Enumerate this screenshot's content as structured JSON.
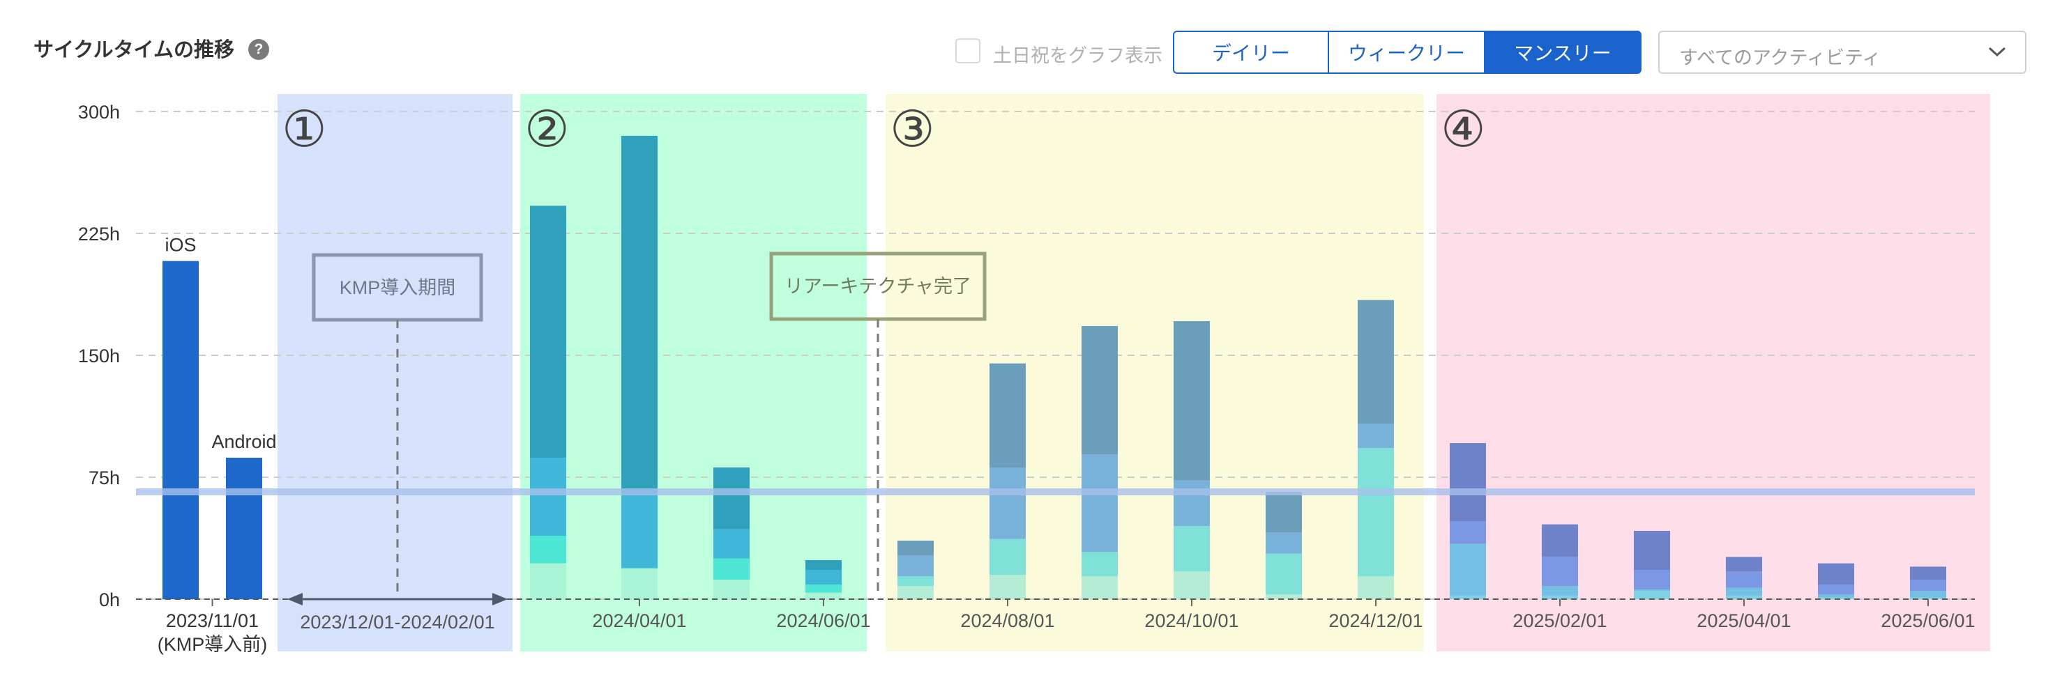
{
  "header": {
    "title": "サイクルタイムの推移",
    "help_icon": "question-circle-icon",
    "weekend_checkbox_label": "土日祝をグラフ表示",
    "weekend_checked": false,
    "period_tabs": [
      "デイリー",
      "ウィークリー",
      "マンスリー"
    ],
    "active_period": "マンスリー",
    "activity_select": "すべてのアクティビティ",
    "chevron_icon": "chevron-down-icon"
  },
  "chart_data": {
    "type": "bar",
    "stacked": true,
    "ylim": [
      0,
      300
    ],
    "y_ticks": [
      {
        "value": 0,
        "label": "0h"
      },
      {
        "value": 75,
        "label": "75h"
      },
      {
        "value": 150,
        "label": "150h"
      },
      {
        "value": 225,
        "label": "225h"
      },
      {
        "value": 300,
        "label": "300h"
      }
    ],
    "grid": "horizontal dashed",
    "reference_line": {
      "value": 66
    },
    "bars": [
      {
        "month": "2023-11",
        "segments": [
          208
        ]
      },
      {
        "month": "2023-11",
        "segments": [
          87
        ]
      },
      {
        "month": "2024-03",
        "segments": [
          22,
          17,
          48,
          155
        ]
      },
      {
        "month": "2024-04",
        "segments": [
          19,
          0,
          46,
          58,
          162
        ]
      },
      {
        "month": "2024-05",
        "segments": [
          12,
          13,
          18,
          38
        ]
      },
      {
        "month": "2024-06",
        "segments": [
          4,
          5,
          9,
          6
        ]
      },
      {
        "month": "2024-07",
        "segments": [
          8,
          6,
          13,
          9
        ]
      },
      {
        "month": "2024-08",
        "segments": [
          15,
          22,
          44,
          64
        ]
      },
      {
        "month": "2024-09",
        "segments": [
          14,
          15,
          60,
          79
        ]
      },
      {
        "month": "2024-10",
        "segments": [
          17,
          28,
          28,
          98
        ]
      },
      {
        "month": "2024-11",
        "segments": [
          3,
          25,
          13,
          25
        ]
      },
      {
        "month": "2024-12",
        "segments": [
          14,
          79,
          15,
          76
        ]
      },
      {
        "month": "2025-01",
        "segments": [
          2,
          32,
          14,
          48
        ]
      },
      {
        "month": "2025-02",
        "segments": [
          2,
          6,
          18,
          20
        ]
      },
      {
        "month": "2025-03",
        "segments": [
          5,
          1,
          12,
          24
        ]
      },
      {
        "month": "2025-04",
        "segments": [
          2,
          5,
          10,
          9
        ]
      },
      {
        "month": "2025-05",
        "segments": [
          1,
          2,
          6,
          13
        ]
      },
      {
        "month": "2025-06",
        "segments": [
          1,
          4,
          7,
          8
        ]
      }
    ],
    "bar_labels": [
      {
        "bar": 0,
        "text": "iOS"
      },
      {
        "bar": 1,
        "text": "Android"
      }
    ],
    "x_tick_labels": [
      {
        "bar": 0.5,
        "lines": [
          "2023/11/01",
          "(KMP導入前)"
        ]
      },
      {
        "bar": 3,
        "lines": [
          "2024/04/01"
        ]
      },
      {
        "bar": 5,
        "lines": [
          "2024/06/01"
        ]
      },
      {
        "bar": 7,
        "lines": [
          "2024/08/01"
        ]
      },
      {
        "bar": 9,
        "lines": [
          "2024/10/01"
        ]
      },
      {
        "bar": 11,
        "lines": [
          "2024/12/01"
        ]
      },
      {
        "bar": 13,
        "lines": [
          "2025/02/01"
        ]
      },
      {
        "bar": 15,
        "lines": [
          "2025/04/01"
        ]
      },
      {
        "bar": 17,
        "lines": [
          "2025/06/01"
        ]
      }
    ],
    "phases": [
      {
        "label": "①",
        "color": "#d6e1fb",
        "bars": null
      },
      {
        "label": "②",
        "color": "#bfffdd",
        "bars": [
          2,
          5
        ]
      },
      {
        "label": "③",
        "color": "#fbfbdc",
        "bars": [
          6,
          11
        ]
      },
      {
        "label": "④",
        "color": "#fddde7",
        "bars": [
          12,
          17
        ]
      }
    ],
    "annotations": [
      {
        "text": "KMP導入期間",
        "range_label": "2023/12/01-2024/02/01"
      },
      {
        "text": "リアーキテクチャ完了"
      }
    ],
    "colors": {
      "pre_kmp": "#1e68cc",
      "phase2": [
        "#a9f4d6",
        "#4ee6d4",
        "#40b6d8",
        "#30a1bd"
      ],
      "phase3": [
        "#b5ecd6",
        "#7ee0d6",
        "#78b2da",
        "#6a9ebb"
      ],
      "phase4": [
        "#7fd3e2",
        "#74c0e4",
        "#7c98e4",
        "#6d82c9"
      ],
      "reference_line": "#a8c0ec"
    }
  }
}
